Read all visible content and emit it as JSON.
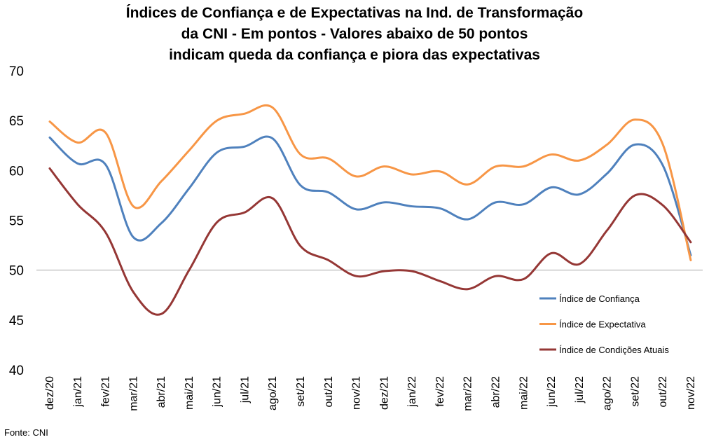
{
  "chart_data": {
    "type": "line",
    "title_lines": [
      "Índices de Confiança e de Expectativas na Ind. de Transformação",
      "da CNI - Em pontos - Valores abaixo de 50 pontos",
      "indicam queda da confiança e piora das expectativas"
    ],
    "x": [
      "dez/20",
      "jan/21",
      "fev/21",
      "mar/21",
      "abr/21",
      "mai/21",
      "jun/21",
      "jul/21",
      "ago/21",
      "set/21",
      "out/21",
      "nov/21",
      "dez/21",
      "jan/22",
      "fev/22",
      "mar/22",
      "abr/22",
      "mai/22",
      "jun/22",
      "jul/22",
      "ago/22",
      "set/22",
      "out/22",
      "nov/22"
    ],
    "ylim": [
      40,
      70
    ],
    "yticks": [
      40,
      45,
      50,
      55,
      60,
      65,
      70
    ],
    "reference_line": 50,
    "legend_position": "right",
    "series": [
      {
        "name": "Índice de Confiança",
        "color": "#4F81BD",
        "values": [
          63.3,
          60.7,
          60.6,
          53.3,
          54.7,
          58.2,
          61.8,
          62.4,
          63.2,
          58.5,
          57.8,
          56.1,
          56.8,
          56.4,
          56.2,
          55.1,
          56.8,
          56.6,
          58.3,
          57.6,
          59.7,
          62.6,
          60.5,
          51.5
        ]
      },
      {
        "name": "Índice de Expectativa",
        "color": "#F79646",
        "values": [
          64.9,
          62.8,
          63.8,
          56.4,
          58.9,
          62.0,
          65.0,
          65.7,
          66.3,
          61.6,
          61.2,
          59.4,
          60.4,
          59.6,
          59.9,
          58.6,
          60.4,
          60.4,
          61.6,
          61.0,
          62.6,
          65.1,
          62.6,
          51.0
        ]
      },
      {
        "name": "Índice de Condições Atuais",
        "color": "#953735",
        "values": [
          60.2,
          56.6,
          53.8,
          47.8,
          45.6,
          50.0,
          54.8,
          55.8,
          57.2,
          52.4,
          51.0,
          49.4,
          49.9,
          49.9,
          48.9,
          48.1,
          49.4,
          49.1,
          51.7,
          50.6,
          54.0,
          57.5,
          56.5,
          52.8
        ]
      }
    ],
    "source_note": "Fonte: CNI"
  }
}
